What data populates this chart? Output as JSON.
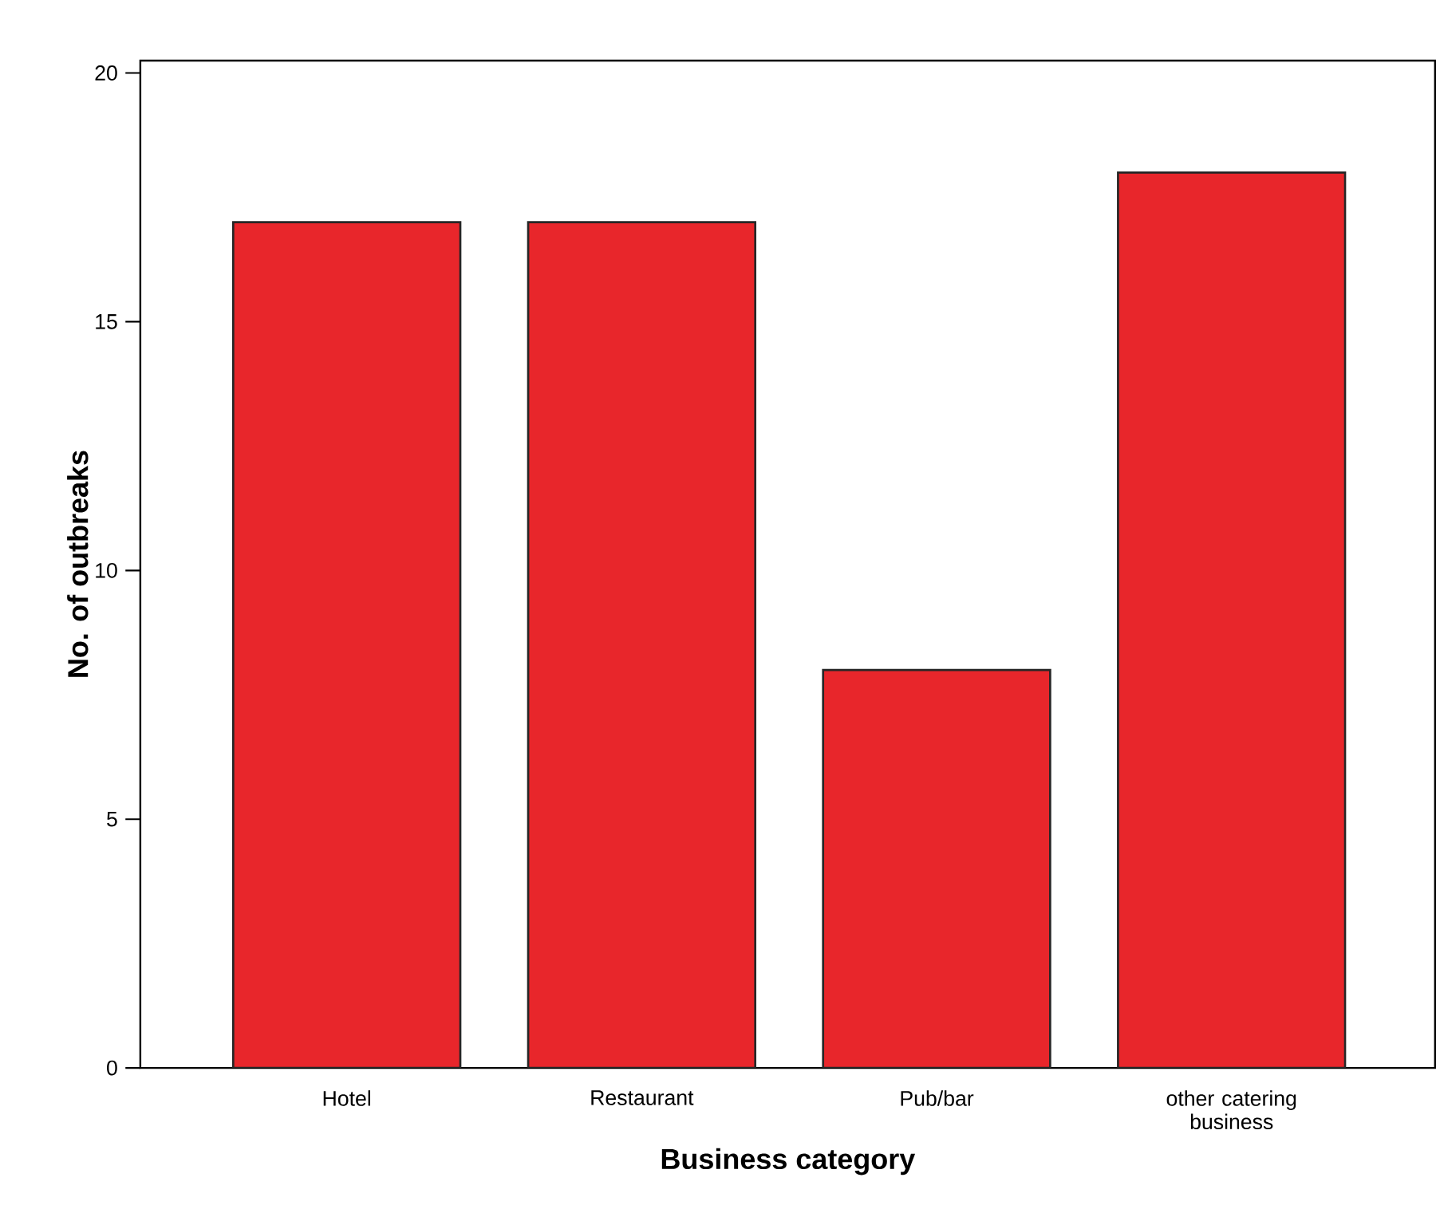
{
  "chart_data": {
    "type": "bar",
    "xlabel": "Business category",
    "ylabel": "No. of outbreaks",
    "categories": [
      "Hotel",
      "Restaurant",
      "Pub/bar",
      "other catering business"
    ],
    "values": [
      17,
      17,
      8,
      18
    ],
    "color": "#e8262b",
    "ylim": [
      0,
      20.25
    ],
    "yticks": [
      0,
      5,
      10,
      15,
      20
    ],
    "grid": false
  }
}
